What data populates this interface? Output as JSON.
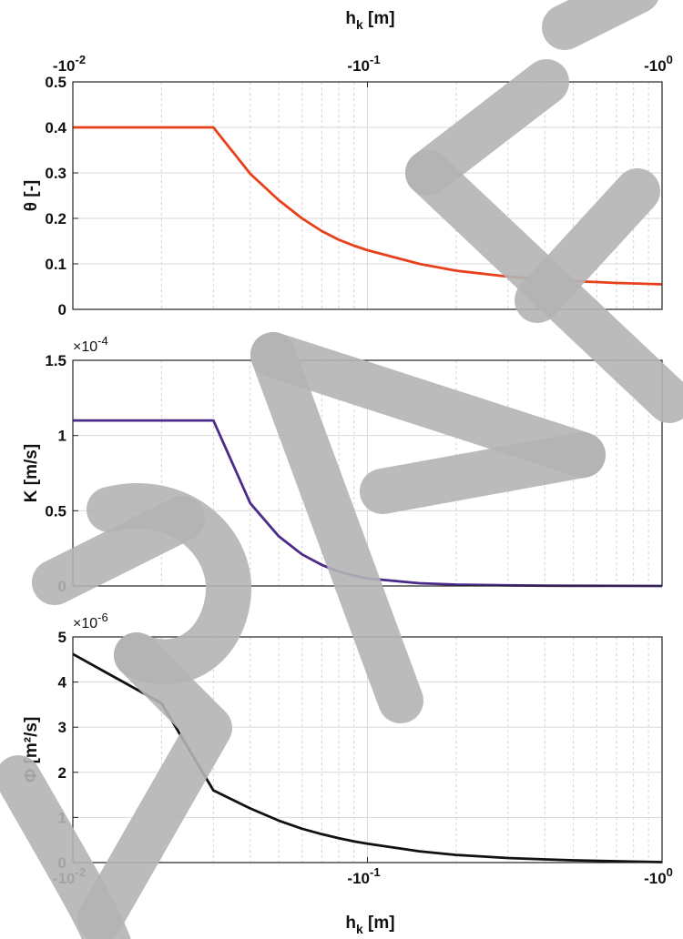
{
  "chart_data": [
    {
      "type": "line",
      "xscale": "log",
      "x_axis_position": "top",
      "xlabel": "h",
      "xlabel_sub": "k",
      "xlabel_unit": " [m]",
      "ylabel": "θ [-]",
      "ylim": [
        0,
        0.5
      ],
      "yticks": [
        "0",
        "0.1",
        "0.2",
        "0.3",
        "0.4",
        "0.5"
      ],
      "ytick_values": [
        0,
        0.1,
        0.2,
        0.3,
        0.4,
        0.5
      ],
      "grid": true,
      "color": "#e8401c",
      "series": [
        {
          "x": [
            -0.01,
            -0.02,
            -0.03,
            -0.04,
            -0.05,
            -0.06,
            -0.07,
            -0.08,
            -0.09,
            -0.1,
            -0.15,
            -0.2,
            -0.3,
            -0.4,
            -0.5,
            -0.6,
            -0.7,
            -0.8,
            -0.9,
            -1.0
          ],
          "values": [
            0.4,
            0.4,
            0.4,
            0.298,
            0.24,
            0.2,
            0.172,
            0.153,
            0.14,
            0.13,
            0.1,
            0.085,
            0.072,
            0.066,
            0.062,
            0.06,
            0.058,
            0.057,
            0.056,
            0.055
          ]
        }
      ]
    },
    {
      "type": "line",
      "xscale": "log",
      "ylabel": "K [m/s]",
      "scale_base": "×10",
      "scale_exp": "-4",
      "ylim": [
        0,
        0.00015
      ],
      "yticks": [
        "0",
        "0.5",
        "1",
        "1.5"
      ],
      "ytick_values": [
        0,
        5e-05,
        0.0001,
        0.00015
      ],
      "grid": true,
      "color": "#4b2a8a",
      "series": [
        {
          "x": [
            -0.01,
            -0.02,
            -0.03,
            -0.04,
            -0.05,
            -0.06,
            -0.07,
            -0.08,
            -0.09,
            -0.1,
            -0.15,
            -0.2,
            -0.3,
            -0.4,
            -0.5,
            -0.7,
            -1.0
          ],
          "values": [
            0.00011,
            0.00011,
            0.00011,
            5.5e-05,
            3.3e-05,
            2.1e-05,
            1.4e-05,
            9.5e-06,
            6.8e-06,
            5e-06,
            1.8e-06,
            9e-07,
            4e-07,
            2e-07,
            1.2e-07,
            6e-08,
            2e-08
          ]
        }
      ]
    },
    {
      "type": "line",
      "xscale": "log",
      "x_axis_position": "bottom",
      "xlabel": "h",
      "xlabel_sub": "k",
      "xlabel_unit": " [m]",
      "ylabel": "Φ [m²/s]",
      "scale_base": "×10",
      "scale_exp": "-6",
      "ylim": [
        0,
        5e-06
      ],
      "yticks": [
        "0",
        "1",
        "2",
        "3",
        "4",
        "5"
      ],
      "ytick_values": [
        0,
        1e-06,
        2e-06,
        3e-06,
        4e-06,
        5e-06
      ],
      "grid": true,
      "color": "#111111",
      "series": [
        {
          "x": [
            -0.01,
            -0.02,
            -0.03,
            -0.04,
            -0.05,
            -0.06,
            -0.07,
            -0.08,
            -0.09,
            -0.1,
            -0.15,
            -0.2,
            -0.3,
            -0.4,
            -0.5,
            -0.7,
            -1.0
          ],
          "values": [
            4.62e-06,
            3.53e-06,
            1.6e-06,
            1.2e-06,
            9.3e-07,
            7.5e-07,
            6.3e-07,
            5.4e-07,
            4.7e-07,
            4.2e-07,
            2.5e-07,
            1.7e-07,
            1e-07,
            7e-08,
            5e-08,
            3e-08,
            1e-08
          ]
        }
      ]
    }
  ],
  "x_ticks": [
    {
      "value": -0.01,
      "base": "-10",
      "exp": "-2"
    },
    {
      "value": -0.1,
      "base": "-10",
      "exp": "-1"
    },
    {
      "value": -1.0,
      "base": "-10",
      "exp": "0"
    }
  ],
  "watermark": "DRAFT"
}
